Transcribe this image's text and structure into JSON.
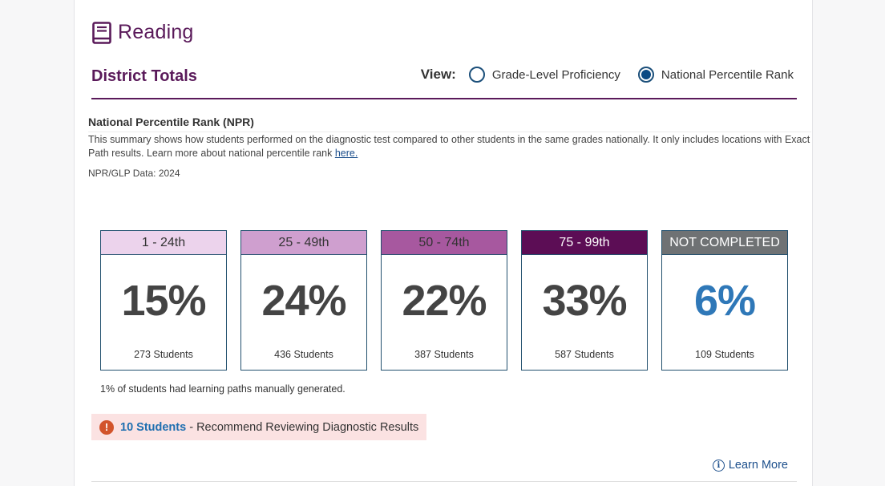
{
  "header": {
    "title": "Reading",
    "icon": "book-icon",
    "accent_color": "#5a1a5a"
  },
  "section": {
    "title": "District Totals",
    "view_label": "View:",
    "options": [
      {
        "label": "Grade-Level Proficiency",
        "selected": false
      },
      {
        "label": "National Percentile Rank",
        "selected": true
      }
    ]
  },
  "npr": {
    "title": "National Percentile Rank (NPR)",
    "description": "This summary shows how students performed on the diagnostic test compared to other students in the same grades nationally. It only includes locations with Exact Path results. Learn more about national percentile rank ",
    "description_link": "here.",
    "data_label": "NPR/GLP Data: 2024"
  },
  "boxes": [
    {
      "label": "1 - 24th",
      "percent": "15%",
      "students": "273 Students",
      "head_bg": "#ecd3ec",
      "head_color": "#333333",
      "pct_color": "#444444"
    },
    {
      "label": "25 - 49th",
      "percent": "24%",
      "students": "436 Students",
      "head_bg": "#cf9fcf",
      "head_color": "#333333",
      "pct_color": "#444444"
    },
    {
      "label": "50 - 74th",
      "percent": "22%",
      "students": "387 Students",
      "head_bg": "#a7589f",
      "head_color": "#333333",
      "pct_color": "#444444"
    },
    {
      "label": "75 - 99th",
      "percent": "33%",
      "students": "587 Students",
      "head_bg": "#5c0d55",
      "head_color": "#ffffff",
      "pct_color": "#444444"
    },
    {
      "label": "NOT COMPLETED",
      "percent": "6%",
      "students": "109 Students",
      "head_bg": "#6f7274",
      "head_color": "#ffffff",
      "pct_color": "#2f78b8"
    }
  ],
  "manual_note": "1% of students had learning paths manually generated.",
  "alert": {
    "icon": "exclamation-icon",
    "link_text": "10 Students",
    "text": " - Recommend Reviewing Diagnostic Results"
  },
  "learn_more": {
    "icon": "info-icon",
    "label": "Learn More"
  }
}
